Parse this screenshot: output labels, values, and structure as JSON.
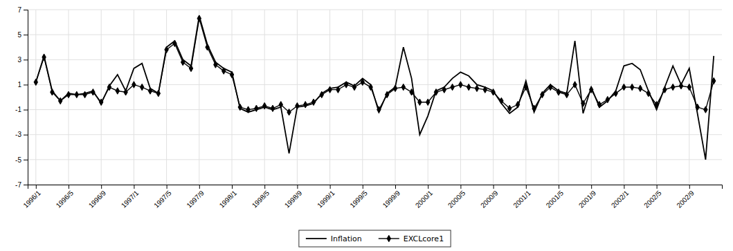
{
  "chart_data": {
    "type": "line",
    "categories": [
      "1996/1",
      null,
      null,
      null,
      "1996/5",
      null,
      null,
      null,
      "1996/9",
      null,
      null,
      null,
      "1997/1",
      null,
      null,
      null,
      "1997/5",
      null,
      null,
      null,
      "1997/9",
      null,
      null,
      null,
      "1998/1",
      null,
      null,
      null,
      "1998/5",
      null,
      null,
      null,
      "1998/9",
      null,
      null,
      null,
      "1999/1",
      null,
      null,
      null,
      "1999/5",
      null,
      null,
      null,
      "1999/9",
      null,
      null,
      null,
      "2000/1",
      null,
      null,
      null,
      "2000/5",
      null,
      null,
      null,
      "2000/9",
      null,
      null,
      null,
      "2001/1",
      null,
      null,
      null,
      "2001/5",
      null,
      null,
      null,
      "2001/9",
      null,
      null,
      null,
      "2002/1",
      null,
      null,
      null,
      "2002/5",
      null,
      null,
      null,
      "2002/9",
      null,
      null,
      null
    ],
    "series": [
      {
        "name": "Inflation",
        "color": "#000000",
        "values": [
          1.2,
          3.3,
          0.5,
          -0.3,
          0.3,
          0.2,
          0.3,
          0.5,
          -0.5,
          0.9,
          1.8,
          0.5,
          2.3,
          2.7,
          0.7,
          0.3,
          4.0,
          4.5,
          3.0,
          2.5,
          6.5,
          4.2,
          2.8,
          2.3,
          2.0,
          -0.9,
          -1.2,
          -1.0,
          -0.8,
          -1.0,
          -0.8,
          -4.5,
          -0.8,
          -0.7,
          -0.5,
          0.3,
          0.7,
          0.8,
          1.2,
          0.9,
          1.5,
          1.0,
          -1.2,
          0.3,
          0.8,
          4.0,
          1.5,
          -3.0,
          -1.5,
          0.5,
          0.8,
          1.5,
          2.0,
          1.7,
          1.0,
          0.8,
          0.5,
          -0.5,
          -1.3,
          -0.8,
          1.3,
          -1.2,
          0.3,
          1.0,
          0.5,
          0.3,
          4.5,
          -1.3,
          0.8,
          -0.8,
          -0.3,
          0.5,
          2.5,
          2.7,
          2.2,
          0.5,
          -1.0,
          0.8,
          2.5,
          1.0,
          2.3,
          -1.3,
          -5.0,
          3.3
        ]
      },
      {
        "name": "EXCLcore1",
        "color": "#000000",
        "marker": "diamond",
        "values": [
          1.2,
          3.2,
          0.4,
          -0.3,
          0.2,
          0.2,
          0.2,
          0.4,
          -0.4,
          0.8,
          0.5,
          0.4,
          1.0,
          0.8,
          0.5,
          0.3,
          3.8,
          4.3,
          2.8,
          2.3,
          6.3,
          4.0,
          2.6,
          2.1,
          1.8,
          -0.8,
          -1.0,
          -0.9,
          -0.7,
          -0.9,
          -0.6,
          -1.2,
          -0.7,
          -0.6,
          -0.4,
          0.2,
          0.6,
          0.6,
          1.0,
          0.8,
          1.2,
          0.8,
          -1.0,
          0.2,
          0.7,
          0.8,
          0.4,
          -0.4,
          -0.4,
          0.4,
          0.6,
          0.8,
          1.0,
          0.8,
          0.7,
          0.6,
          0.4,
          -0.3,
          -0.9,
          -0.6,
          0.8,
          -0.9,
          0.2,
          0.8,
          0.4,
          0.2,
          1.0,
          -0.5,
          0.6,
          -0.6,
          -0.2,
          0.3,
          0.8,
          0.8,
          0.7,
          0.3,
          -0.6,
          0.6,
          0.8,
          0.9,
          0.8,
          -0.8,
          -1.0,
          1.3
        ]
      }
    ],
    "ylim": [
      -7,
      7
    ],
    "yticks": [
      -7,
      -5,
      -3,
      -1,
      1,
      3,
      5,
      7
    ],
    "grid": true,
    "legend": "bottom"
  }
}
